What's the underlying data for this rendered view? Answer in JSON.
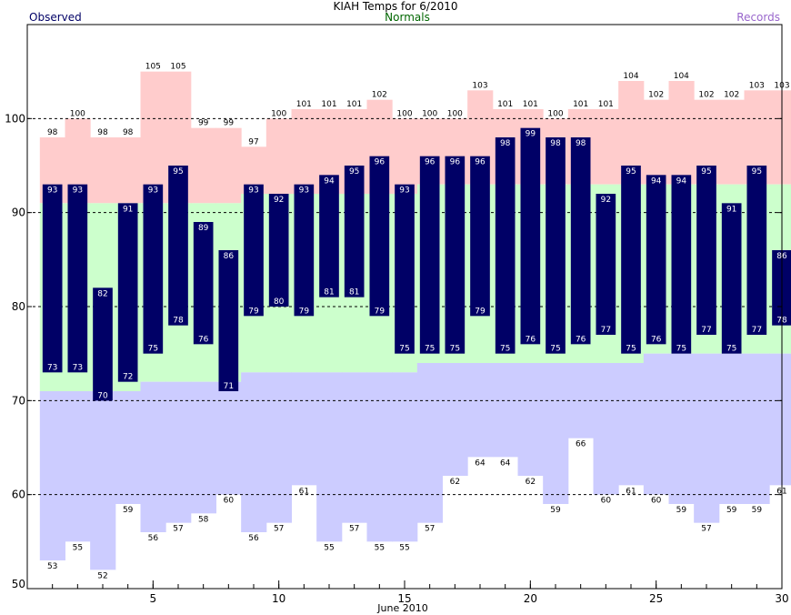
{
  "chart_data": {
    "type": "bar",
    "title": "KIAH Temps for 6/2010",
    "legend": {
      "observed": "Observed",
      "normals": "Normals",
      "records": "Records"
    },
    "xlabel": "June 2010",
    "ylabel": "",
    "xlim": [
      0.5,
      30.5
    ],
    "ylim": [
      50,
      110
    ],
    "yticks": [
      50,
      60,
      70,
      80,
      90,
      100
    ],
    "xticks": [
      5,
      10,
      15,
      20,
      25,
      30
    ],
    "grid_lines": [
      60,
      70,
      80,
      90,
      100
    ],
    "days": [
      1,
      2,
      3,
      4,
      5,
      6,
      7,
      8,
      9,
      10,
      11,
      12,
      13,
      14,
      15,
      16,
      17,
      18,
      19,
      20,
      21,
      22,
      23,
      24,
      25,
      26,
      27,
      28,
      29,
      30
    ],
    "series": [
      {
        "name": "Observed",
        "key": "obs_high",
        "values": [
          93,
          93,
          82,
          91,
          93,
          95,
          89,
          86,
          93,
          92,
          93,
          94,
          95,
          96,
          93,
          96,
          96,
          96,
          98,
          99,
          98,
          98,
          92,
          95,
          94,
          94,
          95,
          91,
          95,
          86
        ]
      },
      {
        "name": "Observed",
        "key": "obs_low",
        "values": [
          73,
          73,
          70,
          72,
          75,
          78,
          76,
          71,
          79,
          80,
          79,
          81,
          81,
          79,
          75,
          75,
          75,
          79,
          75,
          76,
          75,
          76,
          77,
          75,
          76,
          75,
          77,
          75,
          77,
          78
        ]
      },
      {
        "name": "Records",
        "key": "record_high",
        "values": [
          98,
          100,
          98,
          98,
          105,
          105,
          99,
          99,
          97,
          100,
          101,
          101,
          101,
          102,
          100,
          100,
          100,
          103,
          101,
          101,
          100,
          101,
          101,
          104,
          102,
          104,
          102,
          102,
          103,
          103
        ]
      },
      {
        "name": "Records",
        "key": "record_low",
        "values": [
          53,
          55,
          52,
          59,
          56,
          57,
          58,
          60,
          56,
          57,
          61,
          55,
          57,
          55,
          55,
          57,
          62,
          64,
          64,
          62,
          59,
          66,
          60,
          61,
          60,
          59,
          57,
          59,
          59,
          61
        ]
      },
      {
        "name": "Normals",
        "key": "normal_high",
        "values": [
          91,
          91,
          91,
          91,
          91,
          91,
          91,
          91,
          92,
          92,
          92,
          92,
          92,
          92,
          92,
          93,
          93,
          93,
          93,
          93,
          93,
          93,
          93,
          93,
          93,
          93,
          93,
          93,
          93,
          93
        ]
      },
      {
        "name": "Normals",
        "key": "normal_low",
        "values": [
          71,
          71,
          71,
          71,
          72,
          72,
          72,
          72,
          73,
          73,
          73,
          73,
          73,
          73,
          73,
          74,
          74,
          74,
          74,
          74,
          74,
          74,
          74,
          74,
          75,
          75,
          75,
          75,
          75,
          75
        ]
      }
    ],
    "colors": {
      "observed": "#000066",
      "record_high_band": "#ffcccc",
      "normal_band": "#ccffcc",
      "record_low_band": "#ccccff",
      "title_text": "#000000",
      "observed_text": "#000066",
      "normals_text": "#006600",
      "records_text": "#9966cc"
    },
    "grid": true,
    "legend_placement": "top"
  }
}
